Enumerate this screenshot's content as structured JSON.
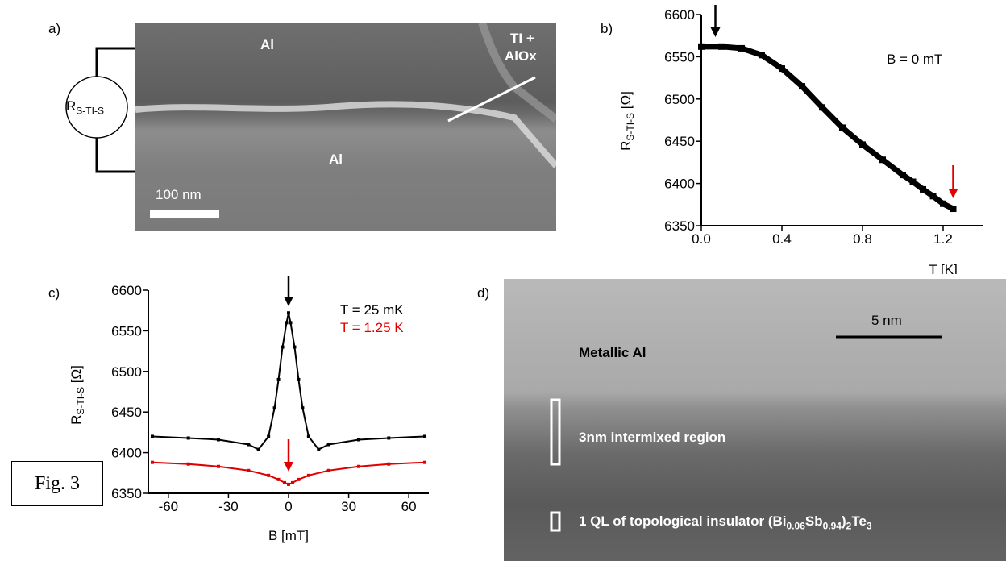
{
  "panels": {
    "a": {
      "label": "a)",
      "circuit_label_main": "R",
      "circuit_label_sub": "S-TI-S",
      "region_top": "Al",
      "region_bottom": "Al",
      "ti_label_line1": "TI +",
      "ti_label_line2": "AlOx",
      "scalebar": "100 nm"
    },
    "b": {
      "label": "b)",
      "annotation": "B = 0 mT",
      "ylabel_main": "R",
      "ylabel_sub": "S-TI-S",
      "ylabel_unit": " [Ω]",
      "xlabel": "T [K]",
      "arrow_colors": [
        "#000000",
        "#e00000"
      ]
    },
    "c": {
      "label": "c)",
      "legend": [
        {
          "text": "T = 25 mK",
          "color": "#000000"
        },
        {
          "text": "T = 1.25 K",
          "color": "#e00000"
        }
      ],
      "ylabel_main": "R",
      "ylabel_sub": "S-TI-S",
      "ylabel_unit": " [Ω]",
      "xlabel": "B [mT]"
    },
    "d": {
      "label": "d)",
      "scalebar": "5 nm",
      "metallic": "Metallic Al",
      "intermixed": "3nm intermixed region",
      "ql_prefix": "1 QL of topological insulator (Bi",
      "ql_sub1": "0.06",
      "ql_mid": "Sb",
      "ql_sub2": "0.94",
      "ql_close": ")",
      "ql_sub3": "2",
      "ql_end": "Te",
      "ql_sub4": "3"
    }
  },
  "fig_label": "Fig. 3",
  "chart_data": [
    {
      "type": "scatter",
      "panel": "b",
      "xlabel": "T [K]",
      "ylabel": "RS-TI-S [Ω]",
      "xlim": [
        0.0,
        1.4
      ],
      "ylim": [
        6350,
        6600
      ],
      "xticks": [
        0.0,
        0.4,
        0.8,
        1.2
      ],
      "xtick_labels": [
        "0.0",
        "0.4",
        "0.8",
        "1.2"
      ],
      "yticks": [
        6350,
        6400,
        6450,
        6500,
        6550,
        6600
      ],
      "ytick_labels": [
        "6350",
        "6400",
        "6450",
        "6500",
        "6550",
        "6600"
      ],
      "series": [
        {
          "color": "#000000",
          "x": [
            0.0,
            0.1,
            0.2,
            0.3,
            0.4,
            0.5,
            0.6,
            0.7,
            0.8,
            0.9,
            1.0,
            1.05,
            1.1,
            1.15,
            1.2,
            1.25
          ],
          "y": [
            6562,
            6562,
            6560,
            6552,
            6536,
            6515,
            6490,
            6466,
            6446,
            6428,
            6410,
            6402,
            6393,
            6385,
            6376,
            6370
          ]
        }
      ]
    },
    {
      "type": "line",
      "panel": "c",
      "xlabel": "B [mT]",
      "ylabel": "RS-TI-S [Ω]",
      "xlim": [
        -70,
        70
      ],
      "ylim": [
        6350,
        6600
      ],
      "xticks": [
        -60,
        -30,
        0,
        30,
        60
      ],
      "xtick_labels": [
        "-60",
        "-30",
        "0",
        "30",
        "60"
      ],
      "yticks": [
        6350,
        6400,
        6450,
        6500,
        6550,
        6600
      ],
      "ytick_labels": [
        "6350",
        "6400",
        "6450",
        "6500",
        "6550",
        "6600"
      ],
      "series": [
        {
          "name": "T = 25 mK",
          "color": "#000000",
          "x": [
            -68,
            -50,
            -35,
            -20,
            -15,
            -10,
            -7,
            -5,
            -3,
            -1,
            0,
            1,
            3,
            5,
            7,
            10,
            15,
            20,
            35,
            50,
            68
          ],
          "y": [
            6420,
            6418,
            6416,
            6410,
            6404,
            6420,
            6455,
            6490,
            6530,
            6560,
            6572,
            6560,
            6530,
            6490,
            6455,
            6420,
            6404,
            6410,
            6416,
            6418,
            6420
          ]
        },
        {
          "name": "T = 1.25 K",
          "color": "#e00000",
          "x": [
            -68,
            -50,
            -35,
            -20,
            -10,
            -5,
            -2,
            0,
            2,
            5,
            10,
            20,
            35,
            50,
            68
          ],
          "y": [
            6388,
            6386,
            6383,
            6378,
            6372,
            6367,
            6363,
            6361,
            6363,
            6367,
            6372,
            6378,
            6383,
            6386,
            6388
          ]
        }
      ]
    }
  ]
}
